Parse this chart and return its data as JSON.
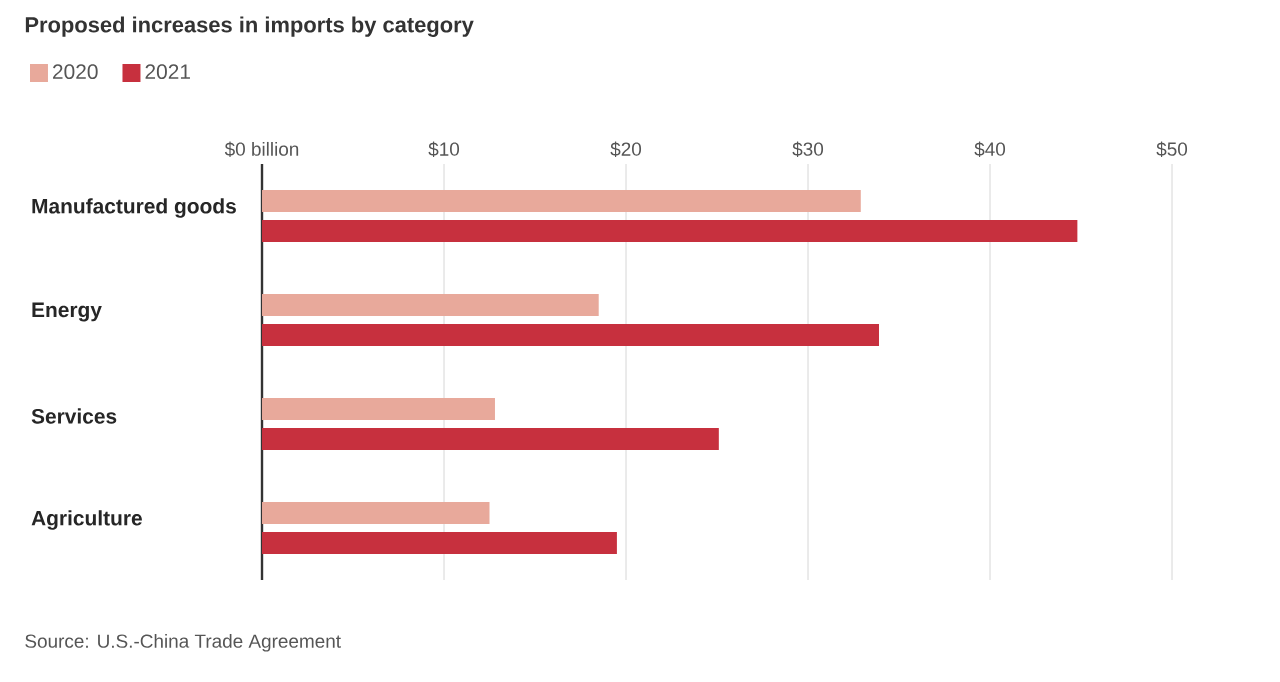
{
  "chart_data": {
    "type": "bar",
    "orientation": "horizontal",
    "title": "Proposed increases in imports by category",
    "categories": [
      "Manufactured goods",
      "Energy",
      "Services",
      "Agriculture"
    ],
    "series": [
      {
        "name": "2020",
        "color": "#e8a99b",
        "values": [
          32.9,
          18.5,
          12.8,
          12.5
        ]
      },
      {
        "name": "2021",
        "color": "#c7303e",
        "values": [
          44.8,
          33.9,
          25.1,
          19.5
        ]
      }
    ],
    "xlim": [
      0,
      50
    ],
    "xticks": [
      {
        "value": 0,
        "label": "$0 billion"
      },
      {
        "value": 10,
        "label": "$10"
      },
      {
        "value": 20,
        "label": "$20"
      },
      {
        "value": 30,
        "label": "$30"
      },
      {
        "value": 40,
        "label": "$40"
      },
      {
        "value": 50,
        "label": "$50"
      }
    ],
    "grid": "x",
    "legend": "top left",
    "annotations": [
      "Source: U.S.-China Trade Agreement"
    ]
  }
}
